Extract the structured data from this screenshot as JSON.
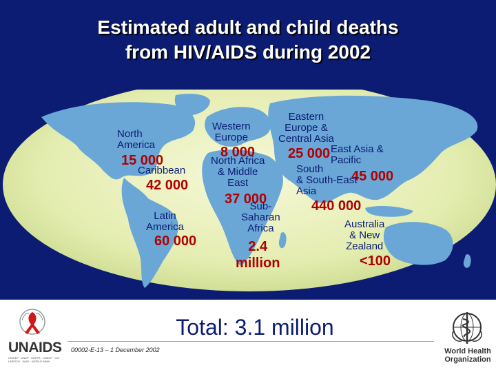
{
  "title": {
    "line1": "Estimated adult and child deaths",
    "line2": "from HIV/AIDS during 2002"
  },
  "regions": {
    "north_america": {
      "label": "North\nAmerica",
      "value": "15 000"
    },
    "caribbean": {
      "label": "Caribbean",
      "value": "42 000"
    },
    "latin_america": {
      "label": "Latin\nAmerica",
      "value": "60 000"
    },
    "western_europe": {
      "label": "Western\nEurope",
      "value": "8 000"
    },
    "north_africa_middle_east": {
      "label": "North Africa\n& Middle\nEast",
      "value": "37 000"
    },
    "sub_saharan_africa": {
      "label": "Sub-\nSaharan\nAfrica",
      "value": "2.4\nmillion"
    },
    "eastern_europe_central_asia": {
      "label": "Eastern\nEurope &\nCentral Asia",
      "value": "25 000"
    },
    "east_asia_pacific": {
      "label": "East Asia &\nPacific",
      "value": "45 000"
    },
    "south_southeast_asia": {
      "label": "South\n& South-East\nAsia",
      "value": "440 000"
    },
    "australia_new_zealand": {
      "label": "Australia\n& New\nZealand",
      "value": "<100"
    }
  },
  "total": "Total: 3.1 million",
  "footer": {
    "code": "00002-E-13 – 1 December 2002",
    "unaids_logo": "UNAIDS",
    "unaids_tagline": "Joint United Nations Programme on HIV/AIDS",
    "unaids_partners": "UNICEF · UNDP · UNFPA · UNDCP · ILO · UNESCO · WHO · WORLD BANK",
    "who_logo": "World Health\nOrganization"
  },
  "colors": {
    "background": "#0b1c72",
    "ocean": "#e8f0b8",
    "land": "#6aa6d6",
    "value_text": "#b00000",
    "label_text": "#0b1c72"
  },
  "icons": {
    "unaids_emblem": "red-ribbon-icon",
    "who_emblem": "who-emblem-icon"
  }
}
